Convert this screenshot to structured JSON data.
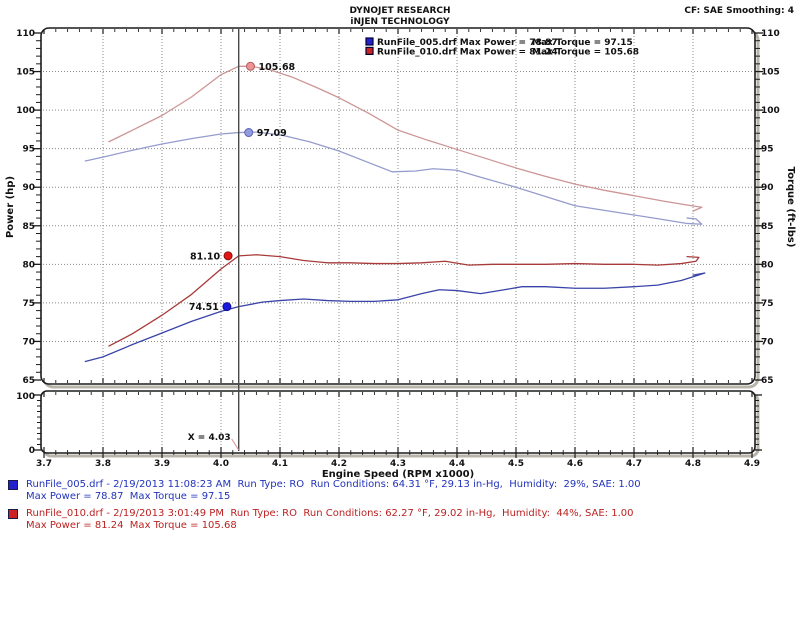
{
  "header": {
    "title_line1": "DYNOJET RESEARCH",
    "title_line2": "iNJEN TECHNOLOGY",
    "correction_info": "CF: SAE  Smoothing: 4"
  },
  "chart_data": {
    "type": "line",
    "x_axis": {
      "label": "Engine Speed (RPM x1000)",
      "min": 3.7,
      "max": 4.9,
      "major_step": 0.1,
      "minor_step": 0.02
    },
    "y_axis_left": {
      "label": "Power (hp)",
      "min": 65,
      "max": 110,
      "major_step": 5,
      "minor_step": 1
    },
    "y_axis_right": {
      "label": "Torque (ft-lbs)",
      "min": 65,
      "max": 110,
      "major_step": 5,
      "minor_step": 1
    },
    "sub_panel": {
      "y_min": 0,
      "y_max": 100,
      "minor_step": 10,
      "labels": [
        "100",
        "0"
      ]
    },
    "grid": true,
    "legend_position": "top-center-inside",
    "legend": [
      {
        "swatch_color": "#2222cc",
        "power_text": "RunFile_005.drf Max Power = 78.87",
        "torque_text": "Max Torque = 97.15"
      },
      {
        "swatch_color": "#cc2222",
        "power_text": "RunFile_010.drf Max Power = 81.24",
        "torque_text": "Max Torque = 105.68"
      }
    ],
    "cursor": {
      "x": 4.03,
      "label": "X = 4.03"
    },
    "cursor_markers": [
      {
        "label": "105.68",
        "x": 4.05,
        "y": 105.68,
        "fill": "#ec9393",
        "stroke": "#b45c5c",
        "label_side": "right"
      },
      {
        "label": "97.09",
        "x": 4.047,
        "y": 97.09,
        "fill": "#939ae0",
        "stroke": "#5c64b4",
        "label_side": "right"
      },
      {
        "label": "81.10",
        "x": 4.012,
        "y": 81.1,
        "fill": "#e01818",
        "stroke": "#8d0f0f",
        "label_side": "left"
      },
      {
        "label": "74.51",
        "x": 4.01,
        "y": 74.51,
        "fill": "#1818e0",
        "stroke": "#0f0f8d",
        "label_side": "left"
      }
    ],
    "series": [
      {
        "name": "RunFile_005.drf Torque",
        "axis": "right",
        "color": "#959ccd",
        "points": [
          [
            3.77,
            93.4
          ],
          [
            3.8,
            93.9
          ],
          [
            3.85,
            94.8
          ],
          [
            3.9,
            95.6
          ],
          [
            3.95,
            96.3
          ],
          [
            4.0,
            96.9
          ],
          [
            4.03,
            97.09
          ],
          [
            4.06,
            97.15
          ],
          [
            4.1,
            96.8
          ],
          [
            4.15,
            95.9
          ],
          [
            4.2,
            94.7
          ],
          [
            4.25,
            93.2
          ],
          [
            4.29,
            92.0
          ],
          [
            4.33,
            92.1
          ],
          [
            4.36,
            92.4
          ],
          [
            4.4,
            92.2
          ],
          [
            4.44,
            91.3
          ],
          [
            4.5,
            90.0
          ],
          [
            4.55,
            88.8
          ],
          [
            4.6,
            87.6
          ],
          [
            4.65,
            87.0
          ],
          [
            4.7,
            86.4
          ],
          [
            4.75,
            85.8
          ],
          [
            4.79,
            85.3
          ],
          [
            4.815,
            85.2
          ],
          [
            4.805,
            85.9
          ],
          [
            4.79,
            86.0
          ]
        ]
      },
      {
        "name": "RunFile_010.drf Torque",
        "axis": "right",
        "color": "#cd9595",
        "points": [
          [
            3.81,
            95.9
          ],
          [
            3.85,
            97.4
          ],
          [
            3.9,
            99.3
          ],
          [
            3.95,
            101.7
          ],
          [
            4.0,
            104.6
          ],
          [
            4.03,
            105.68
          ],
          [
            4.05,
            105.68
          ],
          [
            4.08,
            105.3
          ],
          [
            4.12,
            104.3
          ],
          [
            4.16,
            103.0
          ],
          [
            4.2,
            101.6
          ],
          [
            4.25,
            99.6
          ],
          [
            4.3,
            97.4
          ],
          [
            4.35,
            96.1
          ],
          [
            4.4,
            94.9
          ],
          [
            4.45,
            93.7
          ],
          [
            4.5,
            92.5
          ],
          [
            4.55,
            91.4
          ],
          [
            4.6,
            90.4
          ],
          [
            4.65,
            89.6
          ],
          [
            4.7,
            88.9
          ],
          [
            4.75,
            88.2
          ],
          [
            4.79,
            87.7
          ],
          [
            4.815,
            87.4
          ],
          [
            4.8,
            86.9
          ]
        ]
      },
      {
        "name": "RunFile_005.drf Power",
        "axis": "left",
        "color": "#3a44a8",
        "points": [
          [
            3.77,
            67.4
          ],
          [
            3.8,
            68.0
          ],
          [
            3.85,
            69.6
          ],
          [
            3.9,
            71.1
          ],
          [
            3.95,
            72.6
          ],
          [
            4.0,
            73.9
          ],
          [
            4.03,
            74.51
          ],
          [
            4.07,
            75.1
          ],
          [
            4.1,
            75.3
          ],
          [
            4.14,
            75.5
          ],
          [
            4.18,
            75.3
          ],
          [
            4.22,
            75.2
          ],
          [
            4.26,
            75.2
          ],
          [
            4.3,
            75.4
          ],
          [
            4.34,
            76.2
          ],
          [
            4.37,
            76.7
          ],
          [
            4.4,
            76.6
          ],
          [
            4.44,
            76.2
          ],
          [
            4.48,
            76.7
          ],
          [
            4.51,
            77.1
          ],
          [
            4.55,
            77.1
          ],
          [
            4.6,
            76.9
          ],
          [
            4.65,
            76.9
          ],
          [
            4.7,
            77.1
          ],
          [
            4.74,
            77.3
          ],
          [
            4.78,
            77.9
          ],
          [
            4.805,
            78.5
          ],
          [
            4.82,
            78.87
          ],
          [
            4.8,
            78.6
          ]
        ]
      },
      {
        "name": "RunFile_010.drf Power",
        "axis": "left",
        "color": "#a83a3a",
        "points": [
          [
            3.81,
            69.4
          ],
          [
            3.85,
            71.0
          ],
          [
            3.9,
            73.4
          ],
          [
            3.95,
            76.1
          ],
          [
            4.0,
            79.4
          ],
          [
            4.03,
            81.1
          ],
          [
            4.06,
            81.24
          ],
          [
            4.1,
            81.0
          ],
          [
            4.14,
            80.5
          ],
          [
            4.18,
            80.2
          ],
          [
            4.22,
            80.2
          ],
          [
            4.26,
            80.1
          ],
          [
            4.3,
            80.1
          ],
          [
            4.34,
            80.2
          ],
          [
            4.38,
            80.4
          ],
          [
            4.42,
            79.9
          ],
          [
            4.46,
            80.0
          ],
          [
            4.5,
            80.0
          ],
          [
            4.55,
            80.0
          ],
          [
            4.6,
            80.1
          ],
          [
            4.65,
            80.0
          ],
          [
            4.7,
            80.0
          ],
          [
            4.74,
            79.9
          ],
          [
            4.78,
            80.1
          ],
          [
            4.805,
            80.4
          ],
          [
            4.81,
            80.9
          ],
          [
            4.79,
            81.0
          ]
        ]
      }
    ]
  },
  "footer_runs": [
    {
      "swatch_color": "#2222cc",
      "text_color": "#2233bb",
      "line1": "RunFile_005.drf - 2/19/2013 11:08:23 AM  Run Type: RO  Run Conditions: 64.31 °F, 29.13 in-Hg,  Humidity:  29%, SAE: 1.00",
      "line2": "Max Power = 78.87  Max Torque = 97.15"
    },
    {
      "swatch_color": "#cc2222",
      "text_color": "#bb2222",
      "line1": "RunFile_010.drf - 2/19/2013 3:01:49 PM  Run Type: RO  Run Conditions: 62.27 °F, 29.02 in-Hg,  Humidity:  44%, SAE: 1.00",
      "line2": "Max Power = 81.24  Max Torque = 105.68"
    }
  ]
}
